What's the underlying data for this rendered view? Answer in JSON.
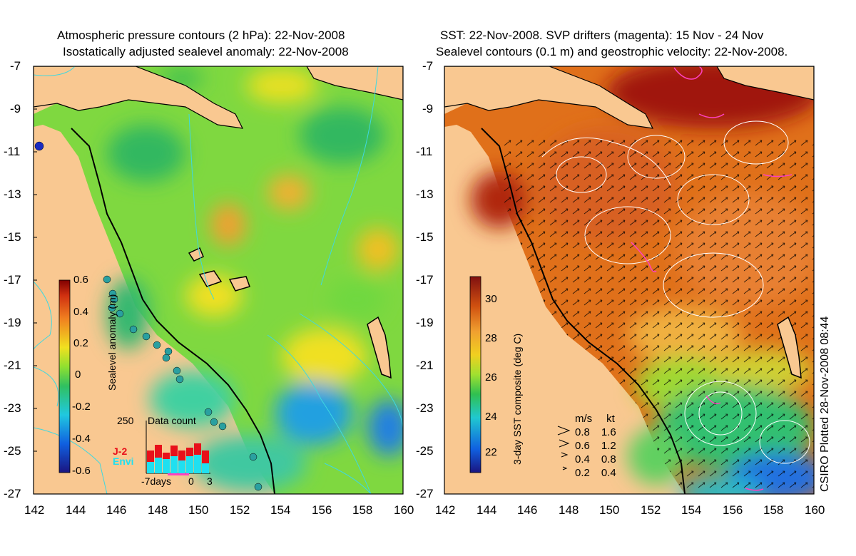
{
  "left_panel": {
    "title_line1": "Atmospheric pressure contours (2 hPa): 22-Nov-2008",
    "title_line2": "Isostatically adjusted sealevel anomaly: 22-Nov-2008",
    "y_ticks": [
      "-7",
      "-9",
      "-11",
      "-13",
      "-15",
      "-17",
      "-19",
      "-21",
      "-23",
      "-25",
      "-27"
    ],
    "x_ticks": [
      "142",
      "144",
      "146",
      "148",
      "150",
      "152",
      "154",
      "156",
      "158",
      "160"
    ],
    "colorbar": {
      "label": "Sealevel anomaly (m)",
      "ticks": [
        "0.6",
        "0.4",
        "0.2",
        "0",
        "-0.2",
        "-0.4",
        "-0.6"
      ],
      "range": [
        -0.6,
        0.6
      ]
    },
    "inset": {
      "title": "Data count",
      "ymax_label": "250",
      "legend_j2": "J-2",
      "legend_envi": "Envi",
      "x_labels": [
        "-7days",
        "0",
        "3"
      ],
      "j2_color": "#e8101a",
      "envi_color": "#20e0f0"
    }
  },
  "right_panel": {
    "title_line1": "SST: 22-Nov-2008. SVP drifters (magenta): 15 Nov - 24 Nov",
    "title_line2": "Sealevel contours (0.1 m) and geostrophic velocity: 22-Nov-2008.",
    "y_ticks": [
      "-7",
      "-9",
      "-11",
      "-13",
      "-15",
      "-17",
      "-19",
      "-21",
      "-23",
      "-25",
      "-27"
    ],
    "x_ticks": [
      "142",
      "144",
      "146",
      "148",
      "150",
      "152",
      "154",
      "156",
      "158",
      "160"
    ],
    "colorbar": {
      "label": "3-day SST composite (deg C)",
      "ticks": [
        "30",
        "28",
        "26",
        "24",
        "22"
      ],
      "range": [
        21,
        31
      ]
    },
    "velocity_legend": {
      "header_ms": "m/s",
      "header_kt": "kt",
      "rows": [
        {
          "ms": "0.8",
          "kt": "1.6"
        },
        {
          "ms": "0.6",
          "kt": "1.2"
        },
        {
          "ms": "0.4",
          "kt": "0.8"
        },
        {
          "ms": "0.2",
          "kt": "0.4"
        }
      ]
    }
  },
  "credit": "CSIRO Plotted 28-Nov-2008 08:44",
  "colors": {
    "land": "#f9c891",
    "coast": "#000000",
    "pressure_contour": "#3fd8e0",
    "drifter": "#ff40c0"
  }
}
